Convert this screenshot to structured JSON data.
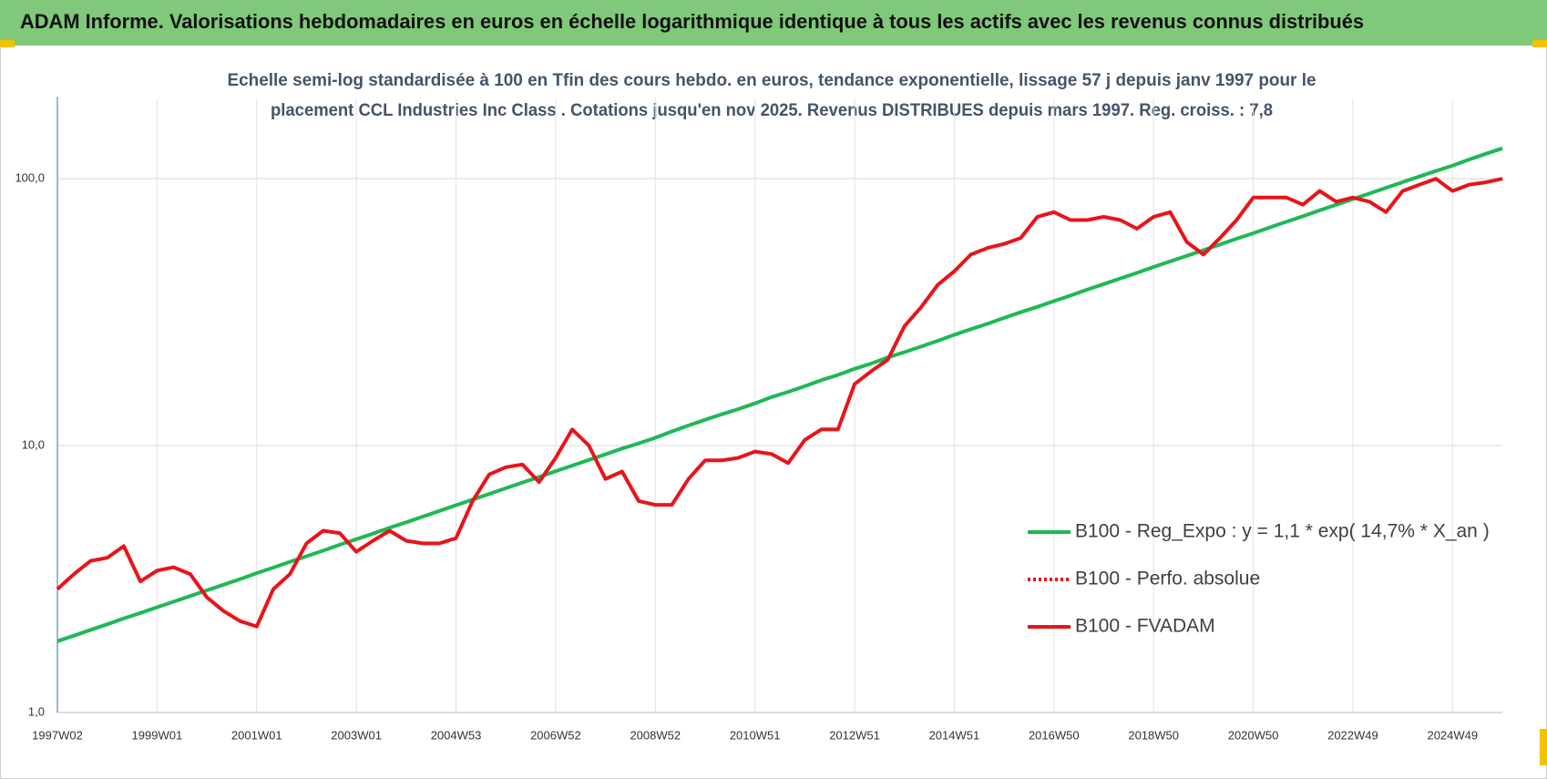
{
  "header": {
    "title": "ADAM Informe. Valorisations hebdomadaires en euros en échelle logarithmique identique à tous les actifs avec les revenus connus distribués"
  },
  "chart_data": {
    "type": "line",
    "subtitle": [
      "Echelle semi-log standardisée à 100 en Tfin des cours hebdo. en euros, tendance exponentielle, lissage 57 j depuis janv 1997 pour le",
      "placement CCL Industries Inc Class . Cotations jusqu'en nov 2025.  Revenus DISTRIBUES depuis mars 1997. Reg. croiss. : 7,8"
    ],
    "log_scale": true,
    "grid": true,
    "legend": "right",
    "ylim": [
      1,
      200
    ],
    "yticks": [
      {
        "value": 1,
        "label": "1,0"
      },
      {
        "value": 10,
        "label": "10,0"
      },
      {
        "value": 100,
        "label": "100,0"
      }
    ],
    "categories": [
      "1997W02",
      null,
      null,
      null,
      null,
      null,
      "1999W01",
      null,
      null,
      null,
      null,
      null,
      "2001W01",
      null,
      null,
      null,
      null,
      null,
      "2003W01",
      null,
      null,
      null,
      null,
      null,
      "2004W53",
      null,
      null,
      null,
      null,
      null,
      "2006W52",
      null,
      null,
      null,
      null,
      null,
      "2008W52",
      null,
      null,
      null,
      null,
      null,
      "2010W51",
      null,
      null,
      null,
      null,
      null,
      "2012W51",
      null,
      null,
      null,
      null,
      null,
      "2014W51",
      null,
      null,
      null,
      null,
      null,
      "2016W50",
      null,
      null,
      null,
      null,
      null,
      "2018W50",
      null,
      null,
      null,
      null,
      null,
      "2020W50",
      null,
      null,
      null,
      null,
      null,
      "2022W49",
      null,
      null,
      null,
      null,
      null,
      "2024W49",
      null,
      null,
      null
    ],
    "series": [
      {
        "name": "B100 - Reg_Expo : y = 1,1 * exp( 14,7% *  X_an )",
        "color": "#1db954",
        "values": [
          1.85,
          1.94,
          2.04,
          2.14,
          2.25,
          2.36,
          2.48,
          2.6,
          2.73,
          2.87,
          3.01,
          3.16,
          3.33,
          3.49,
          3.67,
          3.85,
          4.04,
          4.25,
          4.46,
          4.68,
          4.92,
          5.16,
          5.42,
          5.69,
          5.98,
          6.28,
          6.59,
          6.92,
          7.27,
          7.63,
          8.02,
          8.42,
          8.84,
          9.28,
          9.75,
          10.2,
          10.7,
          11.3,
          11.9,
          12.5,
          13.1,
          13.7,
          14.4,
          15.2,
          15.9,
          16.7,
          17.6,
          18.4,
          19.4,
          20.3,
          21.4,
          22.4,
          23.5,
          24.7,
          26,
          27.3,
          28.6,
          30.1,
          31.6,
          33.1,
          34.8,
          36.5,
          38.4,
          40.3,
          42.3,
          44.4,
          46.7,
          49,
          51.4,
          54,
          56.7,
          59.6,
          62.5,
          65.7,
          69,
          72.4,
          76.1,
          79.9,
          83.9,
          88,
          92.5,
          97.1,
          102,
          107,
          112,
          118,
          124,
          130
        ]
      },
      {
        "name": "B100 - Perfo. absolue",
        "color": "#e8141a",
        "dash": "dotted"
      },
      {
        "name": "B100 - FVADAM",
        "color": "#e8141a",
        "values": [
          2.9,
          3.3,
          3.7,
          3.8,
          4.2,
          3.1,
          3.4,
          3.5,
          3.3,
          2.7,
          2.4,
          2.2,
          2.1,
          2.9,
          3.3,
          4.3,
          4.8,
          4.7,
          4.0,
          4.4,
          4.8,
          4.4,
          4.3,
          4.3,
          4.5,
          6.2,
          7.8,
          8.3,
          8.5,
          7.3,
          9.0,
          11.5,
          10.0,
          7.5,
          8.0,
          6.2,
          6.0,
          6.0,
          7.5,
          8.8,
          8.8,
          9.0,
          9.5,
          9.3,
          8.6,
          10.5,
          11.5,
          11.5,
          17,
          19,
          21,
          28,
          33,
          40,
          45,
          52,
          55,
          57,
          60,
          72,
          75,
          70,
          70,
          72,
          70,
          65,
          72,
          75,
          58,
          52,
          60,
          70,
          85,
          85,
          85,
          80,
          90,
          82,
          85,
          82,
          75,
          90,
          95,
          100,
          90,
          95,
          97,
          100
        ]
      }
    ]
  }
}
